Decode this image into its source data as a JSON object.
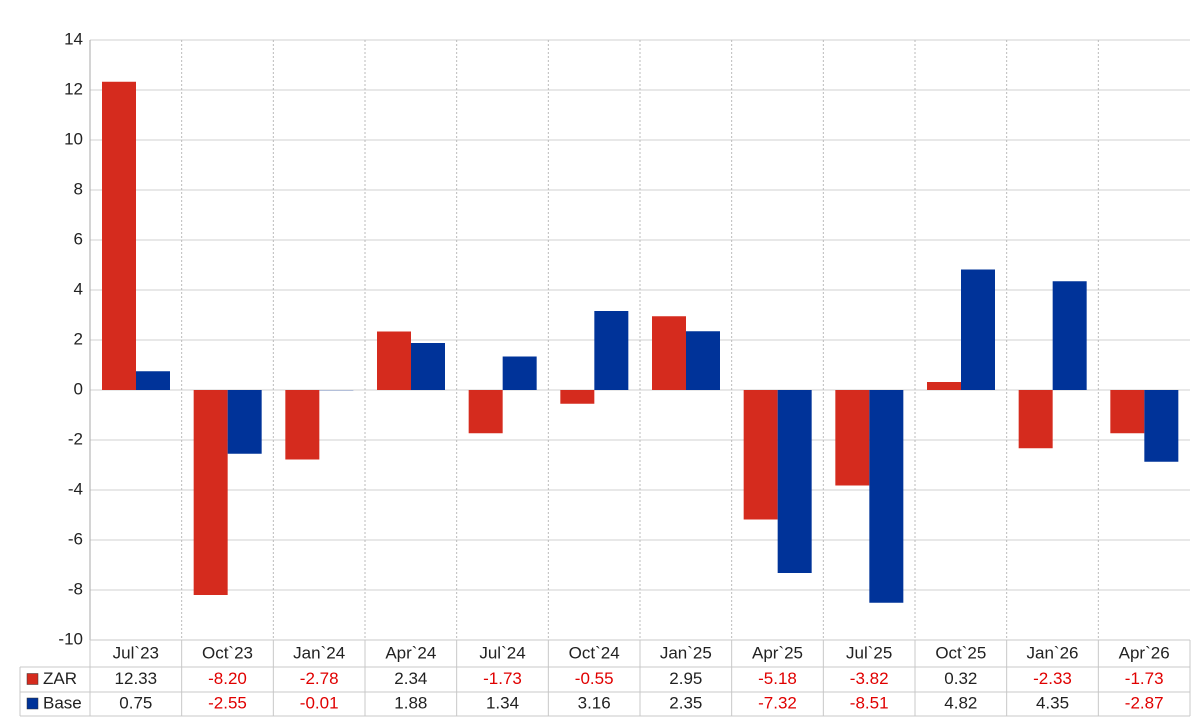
{
  "chart_data": {
    "type": "bar",
    "categories": [
      "Jul`23",
      "Oct`23",
      "Jan`24",
      "Apr`24",
      "Jul`24",
      "Oct`24",
      "Jan`25",
      "Apr`25",
      "Jul`25",
      "Oct`25",
      "Jan`26",
      "Apr`26"
    ],
    "series": [
      {
        "name": "ZAR",
        "color": "#d52b1e",
        "values": [
          12.33,
          -8.2,
          -2.78,
          2.34,
          -1.73,
          -0.55,
          2.95,
          -5.18,
          -3.82,
          0.32,
          -2.33,
          -1.73
        ],
        "value_labels": [
          "12.33",
          "-8.20",
          "-2.78",
          "2.34",
          "-1.73",
          "-0.55",
          "2.95",
          "-5.18",
          "-3.82",
          "0.32",
          "-2.33",
          "-1.73"
        ]
      },
      {
        "name": "Base",
        "color": "#003399",
        "values": [
          0.75,
          -2.55,
          -0.01,
          1.88,
          1.34,
          3.16,
          2.35,
          -7.32,
          -8.51,
          4.82,
          4.35,
          -2.87
        ],
        "value_labels": [
          "0.75",
          "-2.55",
          "-0.01",
          "1.88",
          "1.34",
          "3.16",
          "2.35",
          "-7.32",
          "-8.51",
          "4.82",
          "4.35",
          "-2.87"
        ]
      }
    ],
    "ylim": [
      -10,
      14
    ],
    "yticks": [
      -10,
      -8,
      -6,
      -4,
      -2,
      0,
      2,
      4,
      6,
      8,
      10,
      12,
      14
    ],
    "grid": true
  }
}
